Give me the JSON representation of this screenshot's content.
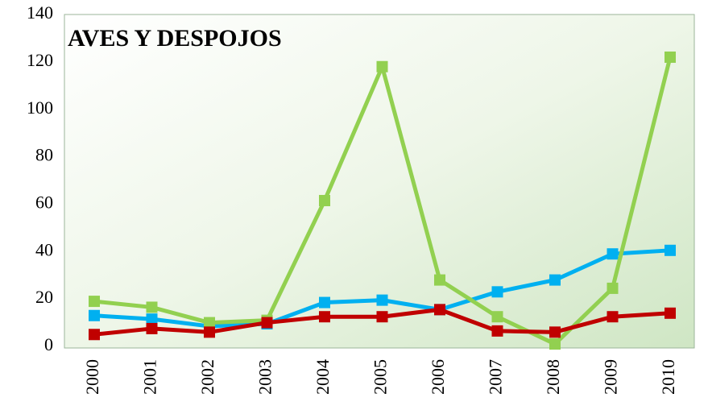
{
  "chart_data": {
    "type": "line",
    "title": "AVES Y DESPOJOS",
    "categories": [
      "2000",
      "2001",
      "2002",
      "2003",
      "2004",
      "2005",
      "2006",
      "2007",
      "2008",
      "2009",
      "2010"
    ],
    "series": [
      {
        "color": "#00b0f0",
        "values": [
          13,
          11.5,
          8.5,
          9.5,
          18.5,
          19.5,
          15.5,
          23,
          28,
          39,
          40.5
        ]
      },
      {
        "color": "#92d050",
        "values": [
          19,
          16.5,
          10,
          11,
          61.5,
          118,
          28,
          12.5,
          1,
          24.5,
          122
        ]
      },
      {
        "color": "#c00000",
        "values": [
          5,
          7.5,
          6,
          10,
          12.5,
          12.5,
          15.5,
          6.5,
          6,
          12.5,
          14
        ]
      }
    ],
    "ylim": [
      0,
      140
    ],
    "yticks": [
      0,
      20,
      40,
      60,
      80,
      100,
      120,
      140
    ],
    "grid": false
  }
}
